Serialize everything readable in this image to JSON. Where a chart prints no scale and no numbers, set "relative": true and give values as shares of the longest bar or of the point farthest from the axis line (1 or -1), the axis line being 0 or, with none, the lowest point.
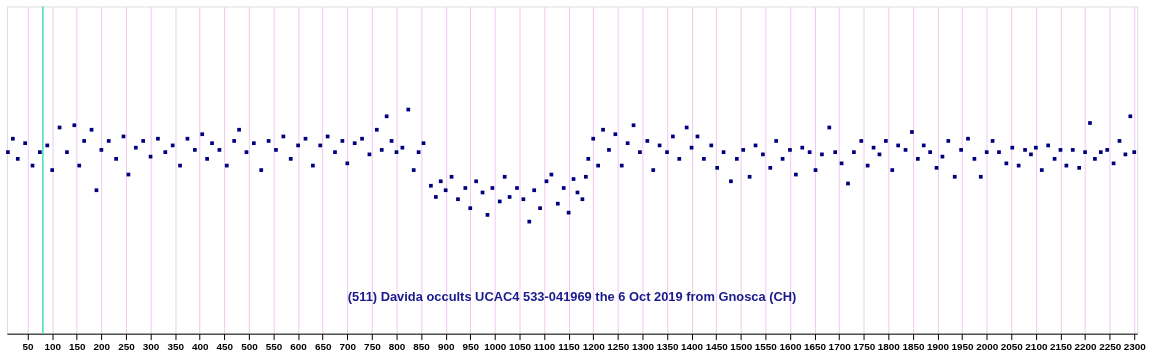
{
  "chart_data": {
    "type": "scatter",
    "relative": true,
    "color": "#00007f",
    "marker": "square",
    "grid": "x",
    "tick_labels": "x",
    "annotations": [
      "(511) Davida occults UCAC4 533-041969 the 6 Oct 2019 from Gnosca (CH)"
    ],
    "ref_lines": [
      {
        "axis": "x",
        "value": 81,
        "label": null,
        "color": "#40e0c0"
      }
    ],
    "xlim": [
      8,
      2306
    ],
    "xticks": [
      50,
      100,
      150,
      200,
      250,
      300,
      350,
      400,
      450,
      500,
      550,
      600,
      650,
      700,
      750,
      800,
      850,
      900,
      950,
      1000,
      1050,
      1100,
      1150,
      1200,
      1250,
      1300,
      1350,
      1400,
      1450,
      1500,
      1550,
      1600,
      1650,
      1700,
      1750,
      1800,
      1850,
      1900,
      1950,
      2000,
      2050,
      2100,
      2150,
      2200,
      2250,
      2300
    ],
    "x": [
      10,
      20,
      30,
      45,
      60,
      75,
      90,
      100,
      115,
      130,
      145,
      155,
      165,
      180,
      190,
      200,
      215,
      230,
      245,
      255,
      270,
      285,
      300,
      315,
      330,
      345,
      360,
      375,
      390,
      405,
      415,
      425,
      440,
      455,
      470,
      480,
      495,
      510,
      525,
      540,
      555,
      570,
      585,
      600,
      615,
      630,
      645,
      660,
      675,
      690,
      700,
      715,
      730,
      745,
      760,
      770,
      780,
      790,
      800,
      812,
      824,
      835,
      845,
      855,
      870,
      880,
      890,
      900,
      912,
      925,
      940,
      950,
      962,
      975,
      985,
      995,
      1010,
      1020,
      1030,
      1045,
      1058,
      1070,
      1080,
      1092,
      1105,
      1115,
      1128,
      1140,
      1150,
      1160,
      1168,
      1178,
      1185,
      1190,
      1200,
      1210,
      1220,
      1232,
      1245,
      1258,
      1270,
      1282,
      1295,
      1310,
      1322,
      1335,
      1350,
      1362,
      1375,
      1390,
      1400,
      1412,
      1425,
      1440,
      1452,
      1465,
      1480,
      1492,
      1505,
      1518,
      1530,
      1545,
      1560,
      1572,
      1585,
      1600,
      1612,
      1625,
      1640,
      1652,
      1665,
      1680,
      1692,
      1705,
      1718,
      1730,
      1745,
      1758,
      1770,
      1782,
      1795,
      1808,
      1820,
      1835,
      1848,
      1860,
      1872,
      1885,
      1898,
      1910,
      1922,
      1935,
      1948,
      1962,
      1975,
      1988,
      2000,
      2012,
      2025,
      2040,
      2052,
      2065,
      2078,
      2090,
      2100,
      2112,
      2125,
      2138,
      2150,
      2162,
      2175,
      2188,
      2200,
      2210,
      2220,
      2232,
      2245,
      2258,
      2270,
      2282,
      2292,
      2300
    ],
    "values": [
      0.81,
      0.87,
      0.78,
      0.85,
      0.75,
      0.81,
      0.84,
      0.73,
      0.92,
      0.81,
      0.93,
      0.75,
      0.86,
      0.91,
      0.64,
      0.82,
      0.86,
      0.78,
      0.88,
      0.71,
      0.83,
      0.86,
      0.79,
      0.87,
      0.81,
      0.84,
      0.75,
      0.87,
      0.82,
      0.89,
      0.78,
      0.85,
      0.82,
      0.75,
      0.86,
      0.91,
      0.81,
      0.85,
      0.73,
      0.86,
      0.82,
      0.88,
      0.78,
      0.84,
      0.87,
      0.75,
      0.84,
      0.88,
      0.81,
      0.86,
      0.76,
      0.85,
      0.87,
      0.8,
      0.91,
      0.82,
      0.97,
      0.86,
      0.81,
      0.83,
      1.0,
      0.73,
      0.81,
      0.85,
      0.66,
      0.61,
      0.68,
      0.64,
      0.7,
      0.6,
      0.65,
      0.56,
      0.68,
      0.63,
      0.53,
      0.65,
      0.59,
      0.7,
      0.61,
      0.65,
      0.6,
      0.5,
      0.64,
      0.56,
      0.68,
      0.71,
      0.58,
      0.65,
      0.54,
      0.69,
      0.63,
      0.6,
      0.7,
      0.78,
      0.87,
      0.75,
      0.91,
      0.82,
      0.89,
      0.75,
      0.85,
      0.93,
      0.81,
      0.86,
      0.73,
      0.84,
      0.81,
      0.88,
      0.78,
      0.92,
      0.83,
      0.88,
      0.78,
      0.84,
      0.74,
      0.81,
      0.68,
      0.78,
      0.82,
      0.7,
      0.84,
      0.8,
      0.74,
      0.86,
      0.78,
      0.82,
      0.71,
      0.83,
      0.81,
      0.73,
      0.8,
      0.92,
      0.81,
      0.76,
      0.67,
      0.81,
      0.86,
      0.75,
      0.83,
      0.8,
      0.86,
      0.73,
      0.84,
      0.82,
      0.9,
      0.78,
      0.84,
      0.81,
      0.74,
      0.79,
      0.86,
      0.7,
      0.82,
      0.87,
      0.78,
      0.7,
      0.81,
      0.86,
      0.81,
      0.76,
      0.83,
      0.75,
      0.82,
      0.8,
      0.83,
      0.73,
      0.84,
      0.78,
      0.82,
      0.75,
      0.82,
      0.74,
      0.81,
      0.94,
      0.78,
      0.81,
      0.82,
      0.76,
      0.86,
      0.8,
      0.97,
      0.81
    ]
  }
}
